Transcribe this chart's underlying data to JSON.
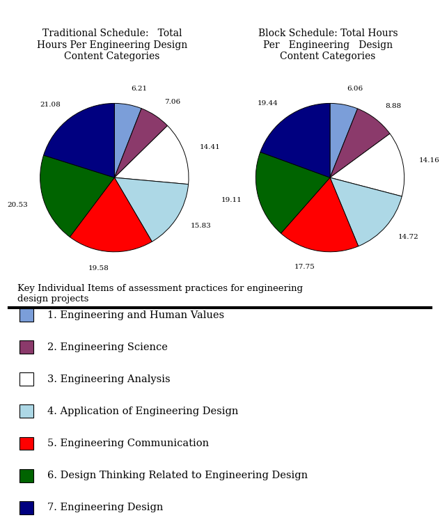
{
  "title_left": "Traditional Schedule:   Total\nHours Per Engineering Design\nContent Categories",
  "title_right": "Block Schedule: Total Hours\nPer   Engineering   Design\nContent Categories",
  "left_values": [
    6.21,
    7.06,
    14.41,
    15.83,
    19.58,
    20.53,
    21.08
  ],
  "right_values": [
    6.06,
    8.88,
    14.16,
    14.72,
    17.75,
    19.11,
    19.44
  ],
  "colors": [
    "#7B9ED9",
    "#8B3A6B",
    "#FFFFFF",
    "#ADD8E6",
    "#FF0000",
    "#006400",
    "#000080"
  ],
  "legend_labels": [
    "1. Engineering and Human Values",
    "2. Engineering Science",
    "3. Engineering Analysis",
    "4. Application of Engineering Design",
    "5. Engineering Communication",
    "6. Design Thinking Related to Engineering Design",
    "7. Engineering Design"
  ],
  "legend_colors": [
    "#7B9ED9",
    "#8B3A6B",
    "#FFFFFF",
    "#ADD8E6",
    "#FF0000",
    "#006400",
    "#000080"
  ],
  "key_title": "Key Individual Items of assessment practices for engineering\ndesign projects",
  "left_labels": [
    "6.21",
    "7.06",
    "14.41",
    "15.83",
    "19.58",
    "20.53",
    "21.08"
  ],
  "right_labels": [
    "6.06",
    "8.88",
    "14.16",
    "14.72",
    "17.75",
    "19.11",
    "19.44"
  ],
  "edge_color": "#000000",
  "startangle": 90,
  "figsize": [
    6.32,
    7.47
  ],
  "dpi": 100
}
